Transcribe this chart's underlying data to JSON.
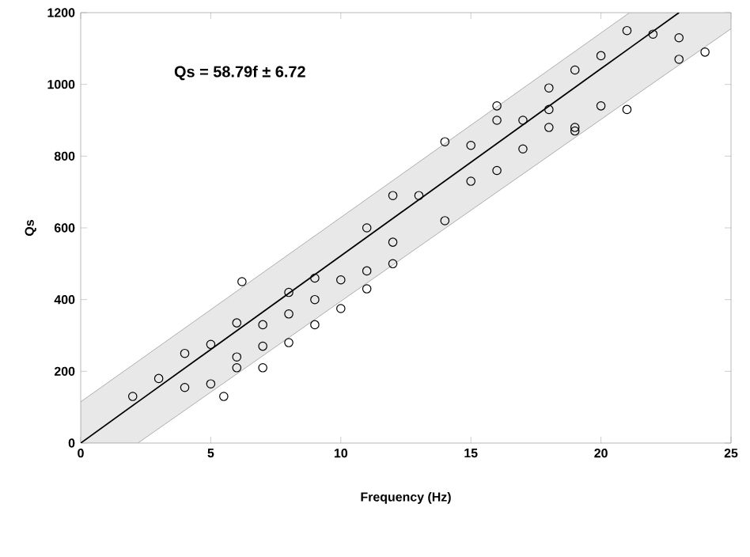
{
  "chart_data": {
    "type": "scatter",
    "xlabel": "Frequency (Hz)",
    "ylabel": "Qs",
    "xlim": [
      0,
      25
    ],
    "ylim": [
      0,
      1200
    ],
    "xticks": [
      0,
      5,
      10,
      15,
      20,
      25
    ],
    "yticks": [
      0,
      200,
      400,
      600,
      800,
      1000,
      1200
    ],
    "grid": false,
    "marker": "circle",
    "annotations": [
      "Qs = 58.79f ± 6.72"
    ],
    "series": [
      {
        "type": "line",
        "color": "#000000",
        "x": [
          0,
          2.2,
          21.1,
          23,
          25
        ],
        "values": [
          0,
          115,
          1101,
          1200,
          null
        ],
        "lower": [
          0,
          0,
          958,
          1054,
          1155
        ],
        "upper": [
          115,
          228,
          1200,
          1200,
          1200
        ],
        "marker": "none",
        "line_style": "solid"
      },
      {
        "color": "#000000",
        "x": [
          2,
          3,
          4,
          4,
          5,
          5,
          5.5,
          6,
          6,
          6,
          6.2,
          7,
          7,
          7,
          8,
          8,
          8,
          9,
          9,
          9,
          10,
          10,
          11,
          11,
          11,
          12,
          12,
          12,
          13,
          14,
          14,
          15,
          15,
          16,
          16,
          16,
          17,
          17,
          18,
          18,
          18,
          19,
          19,
          19,
          20,
          20,
          21,
          21,
          22,
          23,
          23,
          24
        ],
        "values": [
          130,
          180,
          155,
          250,
          275,
          165,
          130,
          210,
          240,
          335,
          450,
          210,
          270,
          330,
          280,
          360,
          420,
          330,
          400,
          460,
          375,
          455,
          430,
          480,
          600,
          500,
          560,
          690,
          690,
          620,
          840,
          730,
          830,
          760,
          900,
          940,
          820,
          900,
          880,
          930,
          990,
          880,
          870,
          1040,
          940,
          1080,
          930,
          1150,
          1140,
          1070,
          1130,
          1090
        ]
      }
    ]
  }
}
